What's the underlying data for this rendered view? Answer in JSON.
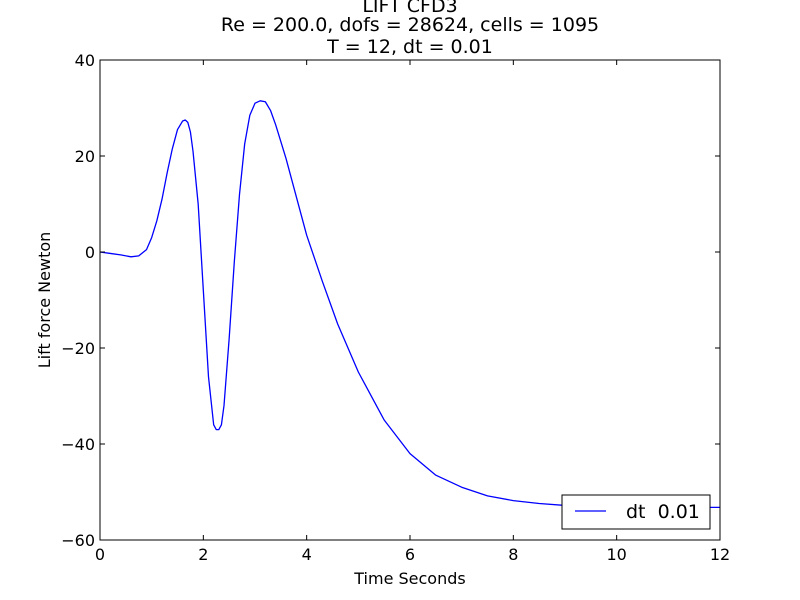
{
  "chart_data": {
    "type": "line",
    "title_lines": [
      "LIFT CFD3",
      "Re = 200.0, dofs = 28624, cells = 1095",
      "T = 12, dt = 0.01"
    ],
    "xlabel": "Time Seconds",
    "ylabel": "Lift force Newton",
    "xlim": [
      0,
      12
    ],
    "ylim": [
      -60,
      40
    ],
    "xticks": [
      0,
      2,
      4,
      6,
      8,
      10,
      12
    ],
    "yticks": [
      40,
      20,
      0,
      -20,
      -40,
      -60
    ],
    "ytick_labels": [
      "40",
      "20",
      "0",
      "−20",
      "−40",
      "−60"
    ],
    "grid": false,
    "legend_position": "lower right",
    "series": [
      {
        "name": "dt  0.01",
        "color": "#0000ff",
        "x": [
          0,
          0.2,
          0.4,
          0.6,
          0.75,
          0.9,
          1.0,
          1.1,
          1.2,
          1.3,
          1.4,
          1.5,
          1.6,
          1.65,
          1.7,
          1.75,
          1.8,
          1.9,
          2.0,
          2.1,
          2.2,
          2.25,
          2.3,
          2.35,
          2.4,
          2.5,
          2.6,
          2.7,
          2.8,
          2.9,
          3.0,
          3.1,
          3.2,
          3.3,
          3.4,
          3.5,
          3.6,
          3.8,
          4.0,
          4.3,
          4.6,
          5.0,
          5.5,
          6.0,
          6.5,
          7.0,
          7.5,
          8.0,
          8.5,
          9.0,
          9.5,
          10.0,
          10.5,
          11.0,
          11.5,
          12.0
        ],
        "y": [
          0,
          -0.3,
          -0.6,
          -1.0,
          -0.8,
          0.5,
          3,
          6.5,
          11,
          16.5,
          21.5,
          25.5,
          27.3,
          27.5,
          27,
          25,
          21,
          10,
          -8,
          -26,
          -36,
          -37,
          -37,
          -36,
          -32,
          -18,
          -2,
          12,
          22.5,
          28.5,
          31,
          31.5,
          31.3,
          29.5,
          26.5,
          23,
          19.5,
          11.5,
          3.5,
          -6,
          -15,
          -25,
          -35,
          -42,
          -46.5,
          -49,
          -50.8,
          -51.8,
          -52.4,
          -52.8,
          -53,
          -53.1,
          -53.2,
          -53.2,
          -53.2,
          -53.2
        ]
      }
    ]
  }
}
